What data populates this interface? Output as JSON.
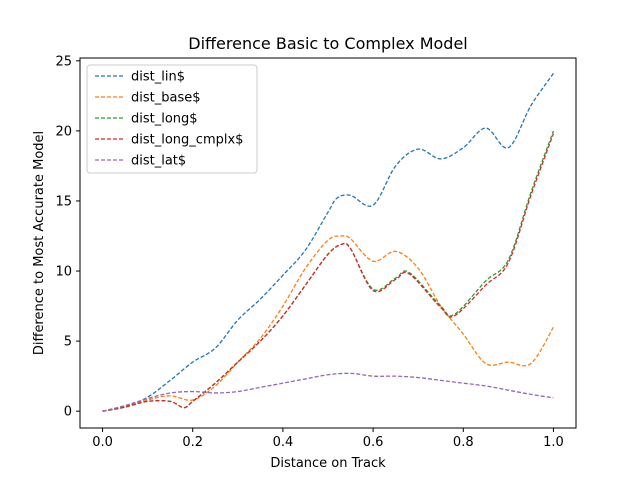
{
  "chart_data": {
    "type": "line",
    "title": "Difference Basic to Complex Model",
    "xlabel": "Distance on Track",
    "ylabel": "Difference to Most Accurate Model",
    "xlim": [
      -0.05,
      1.05
    ],
    "ylim": [
      -1.2,
      25.2
    ],
    "xticks": [
      0.0,
      0.2,
      0.4,
      0.6,
      0.8,
      1.0
    ],
    "xtick_labels": [
      "0.0",
      "0.2",
      "0.4",
      "0.6",
      "0.8",
      "1.0"
    ],
    "yticks": [
      0,
      5,
      10,
      15,
      20,
      25
    ],
    "ytick_labels": [
      "0",
      "5",
      "10",
      "15",
      "20",
      "25"
    ],
    "grid": false,
    "legend_position": "top-left",
    "line_style": "dashed",
    "series": [
      {
        "name": "dist_lin$",
        "color": "#1f77b4",
        "x": [
          0.0,
          0.05,
          0.1,
          0.15,
          0.2,
          0.25,
          0.3,
          0.35,
          0.4,
          0.45,
          0.5,
          0.52,
          0.55,
          0.6,
          0.65,
          0.7,
          0.75,
          0.8,
          0.85,
          0.9,
          0.95,
          1.0
        ],
        "y": [
          0.0,
          0.3,
          1.0,
          2.2,
          3.5,
          4.5,
          6.5,
          8.0,
          9.7,
          11.5,
          14.2,
          15.2,
          15.4,
          14.7,
          17.5,
          18.7,
          18.0,
          18.8,
          20.2,
          18.8,
          21.8,
          24.1
        ]
      },
      {
        "name": "dist_base$",
        "color": "#ff7f0e",
        "x": [
          0.0,
          0.05,
          0.1,
          0.15,
          0.2,
          0.25,
          0.3,
          0.35,
          0.4,
          0.45,
          0.5,
          0.53,
          0.55,
          0.6,
          0.65,
          0.7,
          0.75,
          0.8,
          0.85,
          0.9,
          0.95,
          1.0
        ],
        "y": [
          0.0,
          0.3,
          0.8,
          1.1,
          0.8,
          1.8,
          3.5,
          5.2,
          7.5,
          10.2,
          12.2,
          12.5,
          12.3,
          10.7,
          11.4,
          10.2,
          7.5,
          5.5,
          3.4,
          3.5,
          3.4,
          6.0
        ]
      },
      {
        "name": "dist_long$",
        "color": "#2ca02c",
        "x": [
          0.0,
          0.05,
          0.1,
          0.15,
          0.18,
          0.2,
          0.25,
          0.3,
          0.35,
          0.4,
          0.45,
          0.5,
          0.53,
          0.55,
          0.6,
          0.65,
          0.68,
          0.75,
          0.78,
          0.85,
          0.9,
          0.95,
          1.0
        ],
        "y": [
          0.0,
          0.3,
          0.7,
          0.7,
          0.25,
          0.7,
          2.0,
          3.5,
          5.0,
          6.8,
          9.0,
          11.2,
          11.9,
          11.6,
          8.7,
          9.5,
          9.9,
          7.5,
          6.9,
          9.3,
          10.8,
          15.6,
          20.0
        ]
      },
      {
        "name": "dist_long_cmplx$",
        "color": "#d62728",
        "x": [
          0.0,
          0.05,
          0.1,
          0.15,
          0.18,
          0.2,
          0.25,
          0.3,
          0.35,
          0.4,
          0.45,
          0.5,
          0.53,
          0.55,
          0.6,
          0.65,
          0.68,
          0.75,
          0.78,
          0.85,
          0.9,
          0.95,
          1.0
        ],
        "y": [
          0.0,
          0.3,
          0.7,
          0.7,
          0.25,
          0.7,
          2.0,
          3.5,
          5.0,
          6.8,
          9.0,
          11.2,
          11.9,
          11.6,
          8.6,
          9.4,
          9.8,
          7.4,
          6.8,
          9.0,
          10.6,
          15.4,
          19.8
        ]
      },
      {
        "name": "dist_lat$",
        "color": "#9467bd",
        "x": [
          0.0,
          0.05,
          0.1,
          0.15,
          0.2,
          0.25,
          0.3,
          0.35,
          0.4,
          0.45,
          0.5,
          0.55,
          0.6,
          0.65,
          0.7,
          0.75,
          0.8,
          0.85,
          0.9,
          0.95,
          1.0
        ],
        "y": [
          0.0,
          0.4,
          0.9,
          1.3,
          1.4,
          1.3,
          1.4,
          1.7,
          2.0,
          2.3,
          2.6,
          2.7,
          2.5,
          2.5,
          2.4,
          2.2,
          2.0,
          1.8,
          1.5,
          1.2,
          0.95
        ]
      }
    ]
  }
}
